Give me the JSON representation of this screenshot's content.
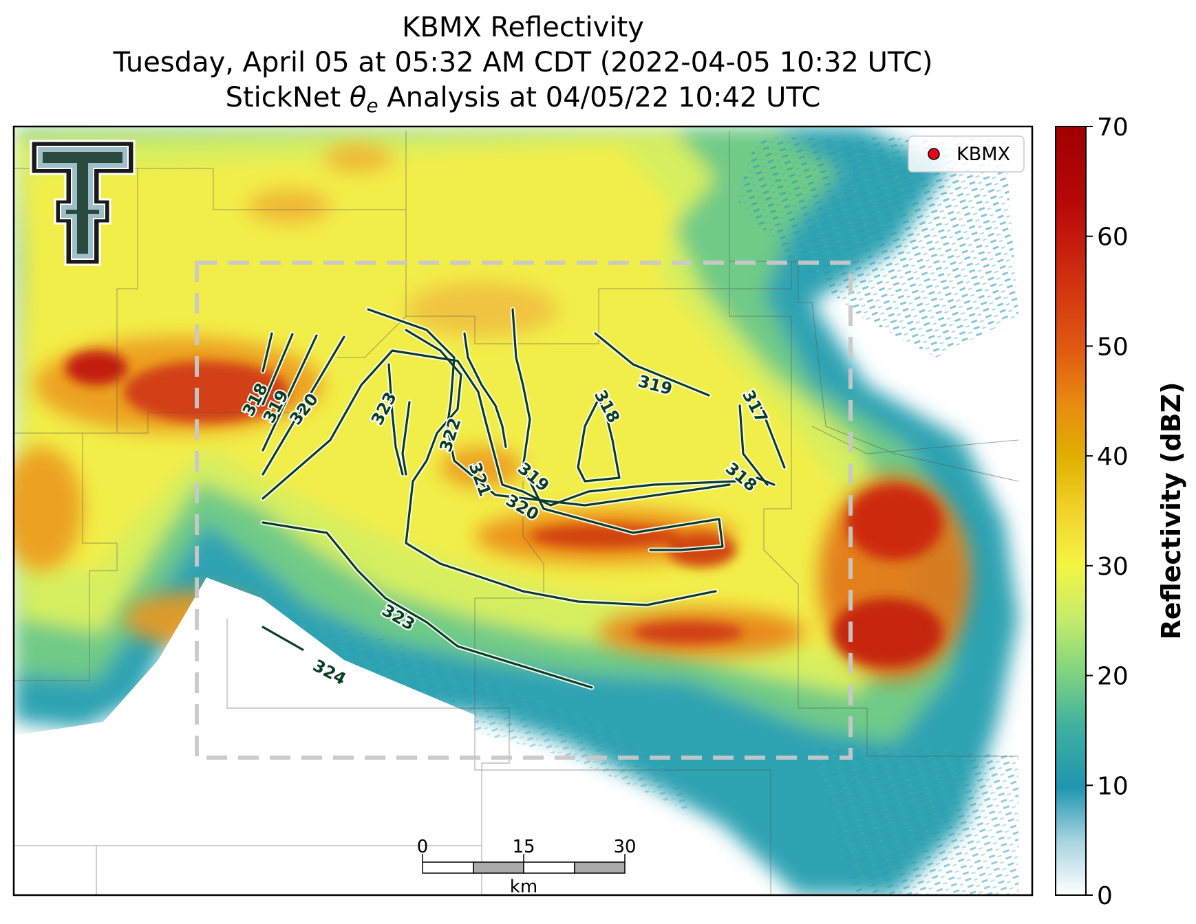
{
  "figure": {
    "title_lines": [
      "KBMX Reflectivity",
      "Tuesday, April 05 at 05:32 AM CDT (2022-04-05 10:32 UTC)"
    ],
    "title_line3_prefix": "StickNet ",
    "title_line3_symbol": "θ",
    "title_line3_sub": "e",
    "title_line3_suffix": " Analysis at 04/05/22 10:42 UTC"
  },
  "legend": {
    "label": "KBMX",
    "marker_color": "#e8001c"
  },
  "logo": {
    "icon": "texas-tech-double-t-logo"
  },
  "colorbar": {
    "label": "Reflectivity (dBZ)",
    "range": [
      0,
      70
    ],
    "ticks": [
      "0",
      "10",
      "20",
      "30",
      "40",
      "50",
      "60",
      "70"
    ],
    "colors": [
      "#ffffff",
      "#1f96b0",
      "#7fd47f",
      "#f5f542",
      "#e0b000",
      "#e05a10",
      "#b00000"
    ]
  },
  "scale_bar": {
    "ticks": [
      "0",
      "15",
      "30"
    ],
    "unit": "km"
  },
  "contours": {
    "line_color": "#0b3d22",
    "labels": [
      "318",
      "319",
      "320",
      "323",
      "322",
      "321",
      "319",
      "320",
      "318",
      "319",
      "317",
      "318",
      "323",
      "324"
    ]
  },
  "analysis_box": {
    "style": "dashed",
    "color": "#c8c8c8"
  }
}
